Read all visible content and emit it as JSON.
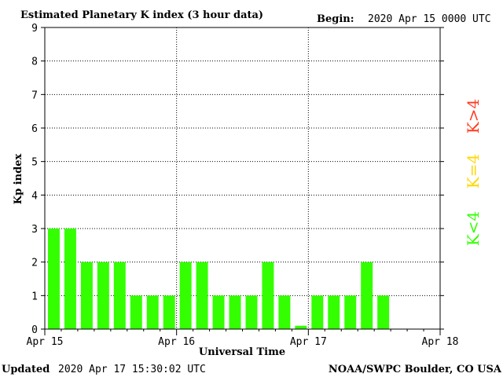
{
  "header": {
    "title": "Estimated Planetary K index (3 hour data)",
    "begin_label": "Begin:",
    "begin_value": "2020 Apr 15 0000 UTC"
  },
  "footer": {
    "updated_label": "Updated",
    "updated_value": "2020 Apr 17 15:30:02 UTC",
    "source": "NOAA/SWPC Boulder, CO USA"
  },
  "legend": {
    "high": {
      "label": "K>4",
      "color": "#ff3b1f"
    },
    "equal": {
      "label": "K=4",
      "color": "#ffd700"
    },
    "low": {
      "label": "K<4",
      "color": "#33ff00"
    }
  },
  "chart_data": {
    "type": "bar",
    "title": "Estimated Planetary K index (3 hour data)",
    "xlabel": "Universal Time",
    "ylabel": "Kp index",
    "ylim": [
      0,
      9
    ],
    "yticks": [
      0,
      1,
      2,
      3,
      4,
      5,
      6,
      7,
      8,
      9
    ],
    "x_tick_labels": [
      "Apr 15",
      "Apr 16",
      "Apr 17",
      "Apr 18"
    ],
    "bars_per_day": 8,
    "grid": true,
    "bar_color": "#33ff00",
    "series": [
      {
        "values": [
          3,
          3,
          2,
          2,
          2,
          1,
          1,
          1,
          2,
          2,
          1,
          1,
          1,
          2,
          1,
          0.1,
          1,
          1,
          1,
          2,
          1
        ]
      }
    ]
  }
}
